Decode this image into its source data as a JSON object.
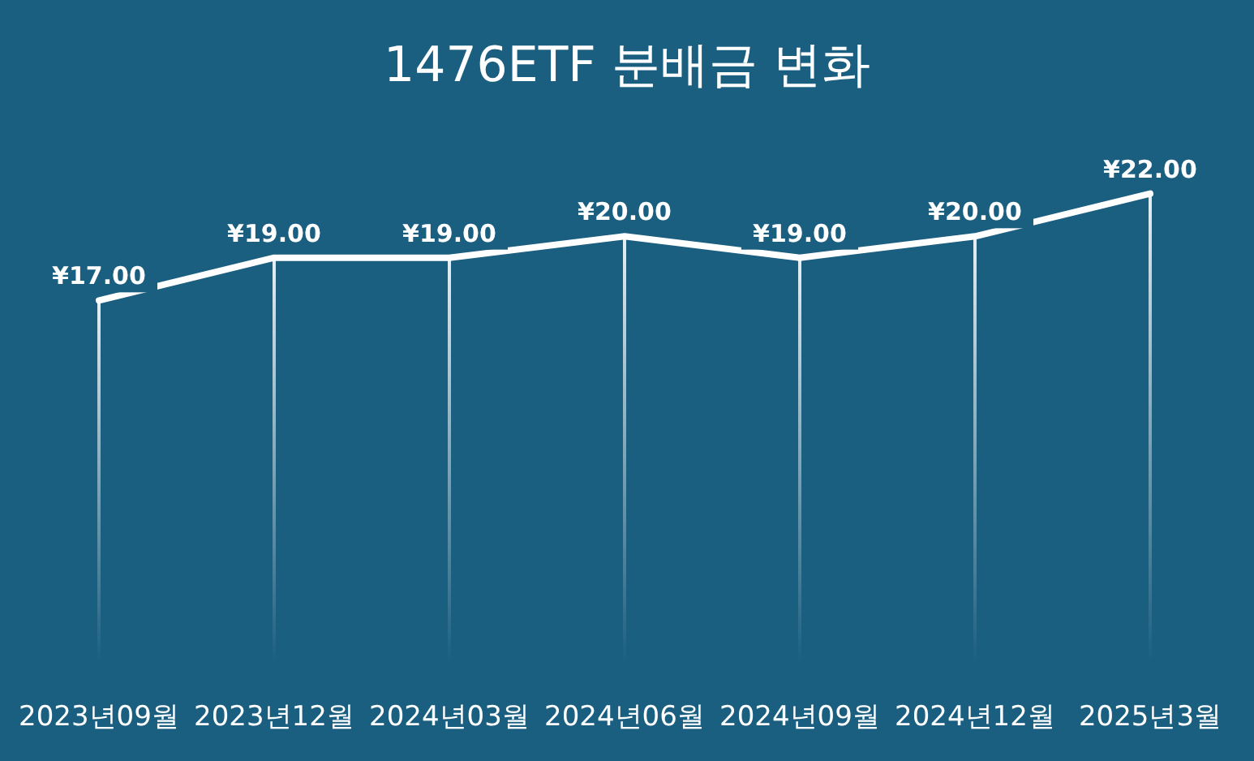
{
  "chart_data": {
    "type": "line",
    "title": "1476ETF 분배금 변화",
    "categories": [
      "2023년09월",
      "2023년12월",
      "2024년03월",
      "2024년06월",
      "2024년09월",
      "2024년12월",
      "2025년3월"
    ],
    "series": [
      {
        "type": "bar",
        "color": "#ffffff",
        "values": [
          17,
          19,
          19,
          20,
          19,
          20,
          22
        ]
      },
      {
        "color": "#ffffff",
        "values": [
          17,
          19,
          19,
          20,
          19,
          20,
          22
        ],
        "value_labels": [
          "¥17.00",
          "¥19.00",
          "¥19.00",
          "¥20.00",
          "¥19.00",
          "¥20.00",
          "¥22.00"
        ]
      }
    ],
    "grid": false,
    "legend": false,
    "line_style": "solid"
  }
}
